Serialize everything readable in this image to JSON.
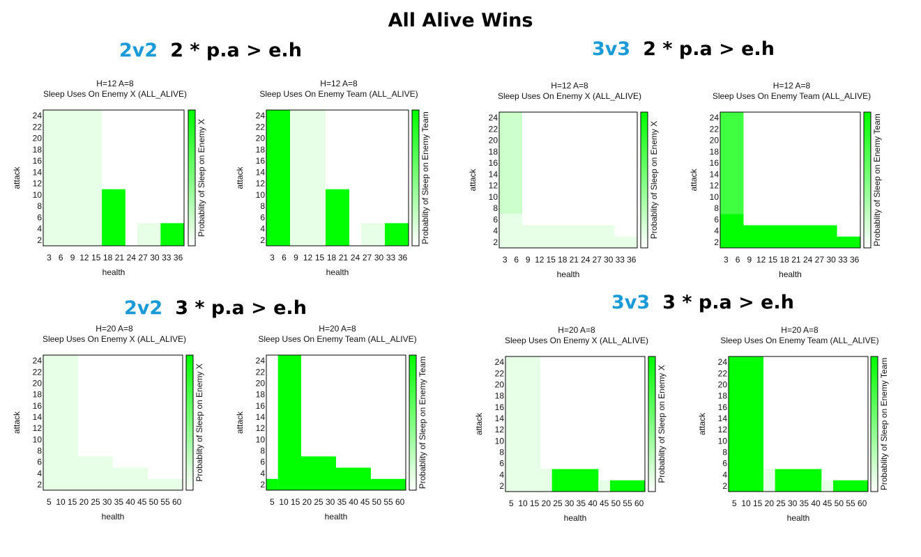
{
  "page_title": "All Alive Wins",
  "sections": [
    {
      "tag": "2v2",
      "rule": "2 * p.a > e.h"
    },
    {
      "tag": "3v3",
      "rule": "2 * p.a > e.h"
    },
    {
      "tag": "2v2",
      "rule": "3 * p.a > e.h"
    },
    {
      "tag": "3v3",
      "rule": "3 * p.a > e.h"
    }
  ],
  "colors": {
    "max": "#00ff00",
    "min": "#ffffff",
    "frame": "#000000"
  },
  "chart_data": [
    {
      "type": "heatmap",
      "title": "H=12 A=8",
      "subtitle": "Sleep Uses On Enemy X (ALL_ALIVE)",
      "xlabel": "health",
      "ylabel": "attack",
      "colorbar_label": "Probablity of Sleep on Enemy X",
      "xlim": [
        1.5,
        37.5
      ],
      "ylim": [
        1,
        25
      ],
      "xticks": [
        "3",
        "6",
        "9",
        "12",
        "15",
        "18",
        "21",
        "24",
        "27",
        "30",
        "33",
        "36"
      ],
      "yticks": [
        "2",
        "4",
        "6",
        "8",
        "10",
        "12",
        "14",
        "16",
        "18",
        "20",
        "22",
        "24"
      ],
      "cells": [
        {
          "x": [
            1.5,
            16.5
          ],
          "y": [
            1,
            25
          ],
          "value": 0.1
        },
        {
          "x": [
            16.5,
            22.5
          ],
          "y": [
            1,
            11
          ],
          "value": 1.0
        },
        {
          "x": [
            25.5,
            28.5
          ],
          "y": [
            1,
            5
          ],
          "value": 0.1
        },
        {
          "x": [
            28.5,
            31.5
          ],
          "y": [
            1,
            5
          ],
          "value": 0.1
        },
        {
          "x": [
            31.5,
            37.5
          ],
          "y": [
            1,
            5
          ],
          "value": 1.0
        }
      ]
    },
    {
      "type": "heatmap",
      "title": "H=12 A=8",
      "subtitle": "Sleep Uses On Enemy Team (ALL_ALIVE)",
      "xlabel": "health",
      "ylabel": "attack",
      "colorbar_label": "Probablity of Sleep on Enemy Team",
      "xlim": [
        1.5,
        37.5
      ],
      "ylim": [
        1,
        25
      ],
      "xticks": [
        "3",
        "6",
        "9",
        "12",
        "15",
        "18",
        "21",
        "24",
        "27",
        "30",
        "33",
        "36"
      ],
      "yticks": [
        "2",
        "4",
        "6",
        "8",
        "10",
        "12",
        "14",
        "16",
        "18",
        "20",
        "22",
        "24"
      ],
      "cells": [
        {
          "x": [
            1.5,
            7.5
          ],
          "y": [
            1,
            25
          ],
          "value": 1.0
        },
        {
          "x": [
            7.5,
            16.5
          ],
          "y": [
            1,
            25
          ],
          "value": 0.1
        },
        {
          "x": [
            16.5,
            22.5
          ],
          "y": [
            1,
            11
          ],
          "value": 1.0
        },
        {
          "x": [
            25.5,
            31.5
          ],
          "y": [
            1,
            5
          ],
          "value": 0.1
        },
        {
          "x": [
            31.5,
            37.5
          ],
          "y": [
            1,
            5
          ],
          "value": 1.0
        }
      ]
    },
    {
      "type": "heatmap",
      "title": "H=12 A=8",
      "subtitle": "Sleep Uses On Enemy X (ALL_ALIVE)",
      "xlabel": "health",
      "ylabel": "attack",
      "colorbar_label": "Probablity of Sleep on Enemy X",
      "xlim": [
        1.5,
        37.5
      ],
      "ylim": [
        1,
        25
      ],
      "xticks": [
        "3",
        "6",
        "9",
        "12",
        "15",
        "18",
        "21",
        "24",
        "27",
        "30",
        "33",
        "36"
      ],
      "yticks": [
        "2",
        "4",
        "6",
        "8",
        "10",
        "12",
        "14",
        "16",
        "18",
        "20",
        "22",
        "24"
      ],
      "cells": [
        {
          "x": [
            1.5,
            7.5
          ],
          "y": [
            7,
            25
          ],
          "value": 0.2
        },
        {
          "x": [
            1.5,
            7.5
          ],
          "y": [
            1,
            7
          ],
          "value": 0.1
        },
        {
          "x": [
            7.5,
            31.5
          ],
          "y": [
            1,
            5
          ],
          "value": 0.1
        },
        {
          "x": [
            31.5,
            37.5
          ],
          "y": [
            1,
            3
          ],
          "value": 0.1
        }
      ]
    },
    {
      "type": "heatmap",
      "title": "H=12 A=8",
      "subtitle": "Sleep Uses On Enemy Team (ALL_ALIVE)",
      "xlabel": "health",
      "ylabel": "attack",
      "colorbar_label": "Probablity of Sleep on Enemy Team",
      "xlim": [
        1.5,
        37.5
      ],
      "ylim": [
        1,
        25
      ],
      "xticks": [
        "3",
        "6",
        "9",
        "12",
        "15",
        "18",
        "21",
        "24",
        "27",
        "30",
        "33",
        "36"
      ],
      "yticks": [
        "2",
        "4",
        "6",
        "8",
        "10",
        "12",
        "14",
        "16",
        "18",
        "20",
        "22",
        "24"
      ],
      "cells": [
        {
          "x": [
            1.5,
            7.5
          ],
          "y": [
            7,
            25
          ],
          "value": 0.75
        },
        {
          "x": [
            1.5,
            7.5
          ],
          "y": [
            1,
            7
          ],
          "value": 1.0
        },
        {
          "x": [
            7.5,
            31.5
          ],
          "y": [
            1,
            5
          ],
          "value": 1.0
        },
        {
          "x": [
            31.5,
            37.5
          ],
          "y": [
            1,
            3
          ],
          "value": 1.0
        }
      ]
    },
    {
      "type": "heatmap",
      "title": "H=20 A=8",
      "subtitle": "Sleep Uses On Enemy X (ALL_ALIVE)",
      "xlabel": "health",
      "ylabel": "attack",
      "colorbar_label": "Probablity of Sleep on Enemy X",
      "xlim": [
        2.5,
        62.5
      ],
      "ylim": [
        1,
        25
      ],
      "xticks": [
        "5",
        "10",
        "15",
        "20",
        "25",
        "30",
        "35",
        "40",
        "45",
        "50",
        "55",
        "60"
      ],
      "yticks": [
        "2",
        "4",
        "6",
        "8",
        "10",
        "12",
        "14",
        "16",
        "18",
        "20",
        "22",
        "24"
      ],
      "cells": [
        {
          "x": [
            2.5,
            17.5
          ],
          "y": [
            1,
            25
          ],
          "value": 0.1
        },
        {
          "x": [
            17.5,
            32.5
          ],
          "y": [
            1,
            7
          ],
          "value": 0.1
        },
        {
          "x": [
            32.5,
            47.5
          ],
          "y": [
            1,
            5
          ],
          "value": 0.1
        },
        {
          "x": [
            47.5,
            62.5
          ],
          "y": [
            1,
            3
          ],
          "value": 0.1
        }
      ]
    },
    {
      "type": "heatmap",
      "title": "H=20 A=8",
      "subtitle": "Sleep Uses On Enemy Team (ALL_ALIVE)",
      "xlabel": "health",
      "ylabel": "attack",
      "colorbar_label": "Probablity of Sleep on Enemy Team",
      "xlim": [
        2.5,
        62.5
      ],
      "ylim": [
        1,
        25
      ],
      "xticks": [
        "5",
        "10",
        "15",
        "20",
        "25",
        "30",
        "35",
        "40",
        "45",
        "50",
        "55",
        "60"
      ],
      "yticks": [
        "2",
        "4",
        "6",
        "8",
        "10",
        "12",
        "14",
        "16",
        "18",
        "20",
        "22",
        "24"
      ],
      "cells": [
        {
          "x": [
            2.5,
            7.5
          ],
          "y": [
            1,
            3
          ],
          "value": 1.0
        },
        {
          "x": [
            7.5,
            17.5
          ],
          "y": [
            1,
            25
          ],
          "value": 1.0
        },
        {
          "x": [
            17.5,
            32.5
          ],
          "y": [
            1,
            7
          ],
          "value": 1.0
        },
        {
          "x": [
            32.5,
            47.5
          ],
          "y": [
            1,
            5
          ],
          "value": 1.0
        },
        {
          "x": [
            47.5,
            62.5
          ],
          "y": [
            1,
            3
          ],
          "value": 1.0
        }
      ]
    },
    {
      "type": "heatmap",
      "title": "H=20 A=8",
      "subtitle": "Sleep Uses On Enemy X (ALL_ALIVE)",
      "xlabel": "health",
      "ylabel": "attack",
      "colorbar_label": "Probablity of Sleep on Enemy X",
      "xlim": [
        2.5,
        62.5
      ],
      "ylim": [
        1,
        25
      ],
      "xticks": [
        "5",
        "10",
        "15",
        "20",
        "25",
        "30",
        "35",
        "40",
        "45",
        "50",
        "55",
        "60"
      ],
      "yticks": [
        "2",
        "4",
        "6",
        "8",
        "10",
        "12",
        "14",
        "16",
        "18",
        "20",
        "22",
        "24"
      ],
      "cells": [
        {
          "x": [
            2.5,
            17.5
          ],
          "y": [
            1,
            25
          ],
          "value": 0.1
        },
        {
          "x": [
            17.5,
            22.5
          ],
          "y": [
            1,
            5
          ],
          "value": 0.1
        },
        {
          "x": [
            22.5,
            42.5
          ],
          "y": [
            1,
            5
          ],
          "value": 1.0
        },
        {
          "x": [
            42.5,
            47.5
          ],
          "y": [
            1,
            3
          ],
          "value": 0.1
        },
        {
          "x": [
            47.5,
            62.5
          ],
          "y": [
            1,
            3
          ],
          "value": 1.0
        }
      ]
    },
    {
      "type": "heatmap",
      "title": "H=20 A=8",
      "subtitle": "Sleep Uses On Enemy Team (ALL_ALIVE)",
      "xlabel": "health",
      "ylabel": "attack",
      "colorbar_label": "Probablity of Sleep on Enemy Team",
      "xlim": [
        2.5,
        62.5
      ],
      "ylim": [
        1,
        25
      ],
      "xticks": [
        "5",
        "10",
        "15",
        "20",
        "25",
        "30",
        "35",
        "40",
        "45",
        "50",
        "55",
        "60"
      ],
      "yticks": [
        "2",
        "4",
        "6",
        "8",
        "10",
        "12",
        "14",
        "16",
        "18",
        "20",
        "22",
        "24"
      ],
      "cells": [
        {
          "x": [
            2.5,
            17.5
          ],
          "y": [
            1,
            25
          ],
          "value": 1.0
        },
        {
          "x": [
            17.5,
            22.5
          ],
          "y": [
            1,
            5
          ],
          "value": 0.1
        },
        {
          "x": [
            22.5,
            42.5
          ],
          "y": [
            1,
            5
          ],
          "value": 1.0
        },
        {
          "x": [
            42.5,
            47.5
          ],
          "y": [
            1,
            3
          ],
          "value": 0.1
        },
        {
          "x": [
            47.5,
            62.5
          ],
          "y": [
            1,
            3
          ],
          "value": 1.0
        }
      ]
    }
  ]
}
